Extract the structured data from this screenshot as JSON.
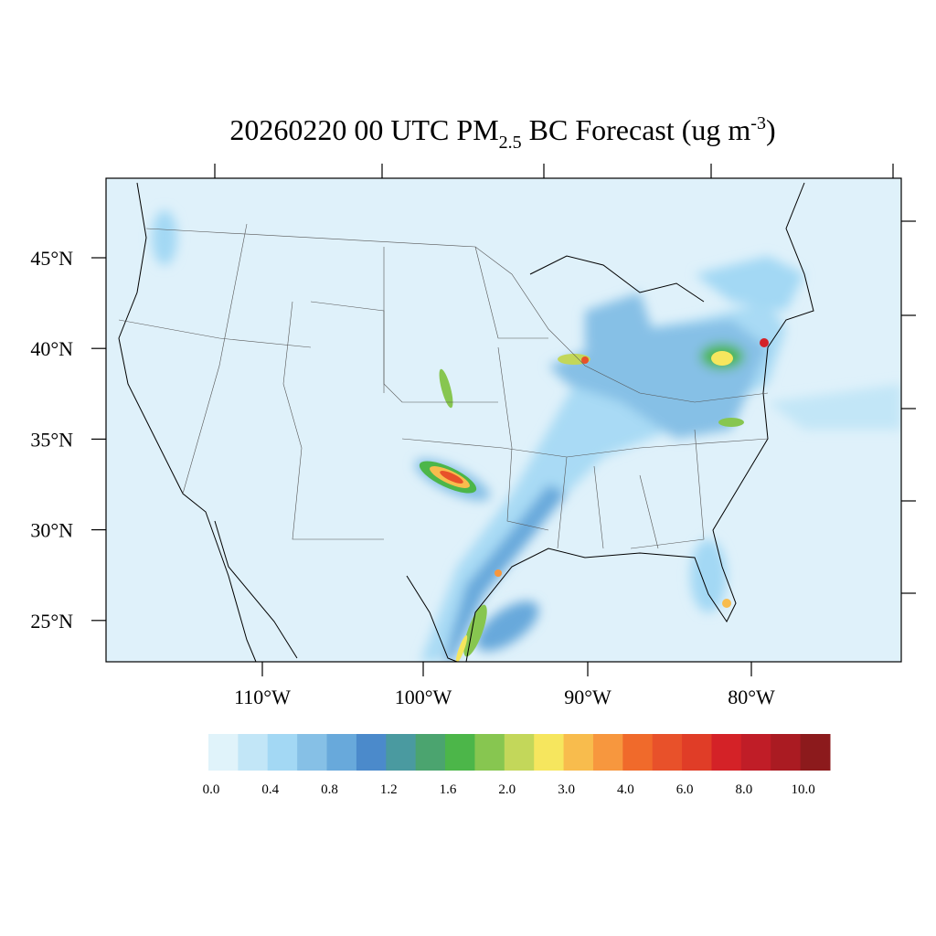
{
  "title": {
    "main": "20260220 00 UTC PM",
    "sub": "2.5",
    "rest": " BC Forecast (ug m",
    "sup": "-3",
    "end": ")"
  },
  "lat_labels": [
    "45°N",
    "40°N",
    "35°N",
    "30°N",
    "25°N"
  ],
  "lon_labels": [
    "110°W",
    "100°W",
    "90°W",
    "80°W"
  ],
  "colorbar": {
    "colors": [
      "#e0f3fa",
      "#c2e6f7",
      "#a3d8f4",
      "#86c0e6",
      "#68a9db",
      "#4b8acb",
      "#4a9aa0",
      "#4ba46f",
      "#4cb649",
      "#87c650",
      "#c3d75a",
      "#f6e65e",
      "#f8bc4d",
      "#f7973e",
      "#f06a2b",
      "#e8512a",
      "#e03d27",
      "#d42227",
      "#c01d27",
      "#aa1b22",
      "#8c1a1c"
    ],
    "labels": [
      "0.0",
      "0.4",
      "0.8",
      "1.2",
      "1.6",
      "2.0",
      "3.0",
      "4.0",
      "6.0",
      "8.0",
      "10.0"
    ]
  }
}
